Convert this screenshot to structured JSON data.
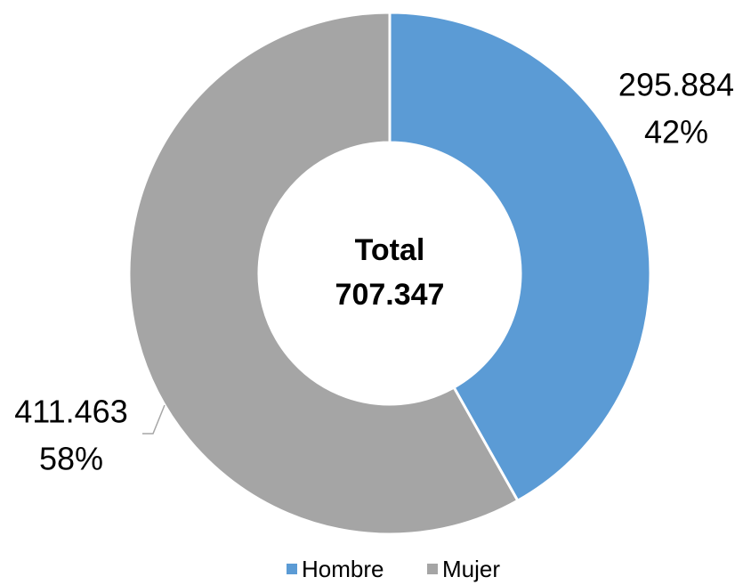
{
  "chart_data": {
    "type": "pie",
    "categories": [
      "Hombre",
      "Mujer"
    ],
    "values": [
      295884,
      411463
    ],
    "value_labels": [
      "295.884",
      "411.463"
    ],
    "percent_labels": [
      "42%",
      "58%"
    ],
    "colors": [
      "#5b9bd5",
      "#a5a5a5"
    ],
    "center_title": "Total",
    "center_text": "707.347",
    "donut": true,
    "legend": "bottom"
  }
}
